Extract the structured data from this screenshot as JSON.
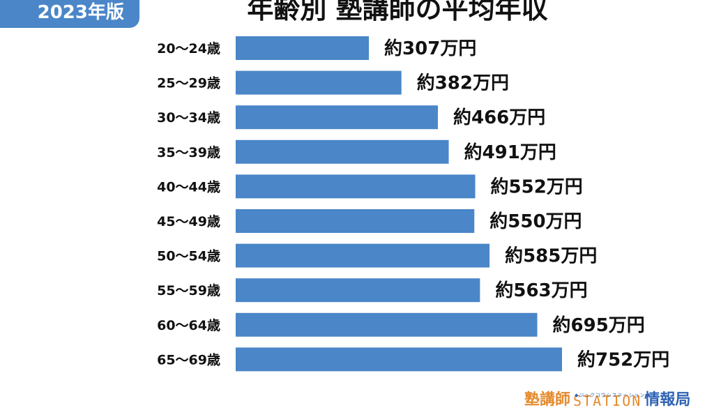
{
  "badge": {
    "year_label": "2023年版"
  },
  "title": "年齢別 塾講師の平均年収",
  "brand": {
    "left": "塾講師",
    "middle": "STATION",
    "sub": "◆ジュクコウシステーション◆",
    "right": "情報局"
  },
  "chart_data": {
    "type": "bar",
    "orientation": "horizontal",
    "bar_color": "#4a86c8",
    "categories": [
      "20〜24歳",
      "25〜29歳",
      "30〜34歳",
      "35〜39歳",
      "40〜44歳",
      "45〜49歳",
      "50〜54歳",
      "55〜59歳",
      "60〜64歳",
      "65〜69歳"
    ],
    "values": [
      307,
      382,
      466,
      491,
      552,
      550,
      585,
      563,
      695,
      752
    ],
    "value_labels": [
      "約307万円",
      "約382万円",
      "約466万円",
      "約491万円",
      "約552万円",
      "約550万円",
      "約585万円",
      "約563万円",
      "約695万円",
      "約752万円"
    ]
  }
}
